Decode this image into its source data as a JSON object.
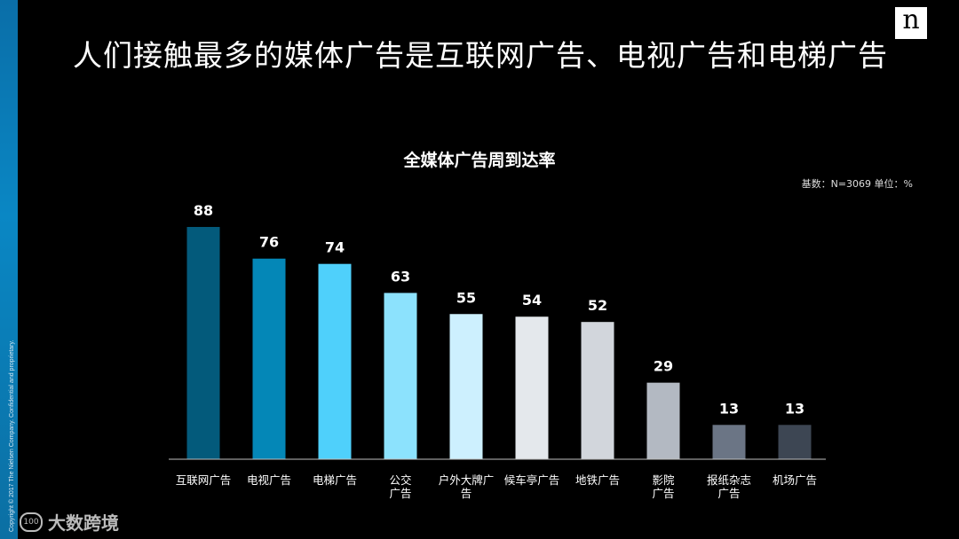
{
  "slide": {
    "title": "人们接触最多的媒体广告是互联网广告、电视广告和电梯广告",
    "logo": "n",
    "copyright": "Copyright © 2017 The Nielsen Company. Confidential and proprietary.",
    "watermark": "大数跨境",
    "watermark_mark": "100"
  },
  "chart_data": {
    "type": "bar",
    "title": "全媒体广告周到达率",
    "note": "基数：N=3069    单位：%",
    "categories": [
      [
        "互联网广告"
      ],
      [
        "电视广告"
      ],
      [
        "电梯广告"
      ],
      [
        "公交",
        "广告"
      ],
      [
        "户外大牌广",
        "告"
      ],
      [
        "候车亭广告"
      ],
      [
        "地铁广告"
      ],
      [
        "影院",
        "广告"
      ],
      [
        "报纸杂志",
        "广告"
      ],
      [
        "机场广告"
      ]
    ],
    "values": [
      88,
      76,
      74,
      63,
      55,
      54,
      52,
      29,
      13,
      13
    ],
    "colors": [
      "#035a7b",
      "#0487b7",
      "#4fd0fb",
      "#8ce2fd",
      "#cdf0fe",
      "#e4e8ec",
      "#d2d6dc",
      "#b3b9c2",
      "#6b7585",
      "#3d4653"
    ],
    "ylim": [
      0,
      100
    ],
    "grid": false,
    "legend": "none"
  }
}
